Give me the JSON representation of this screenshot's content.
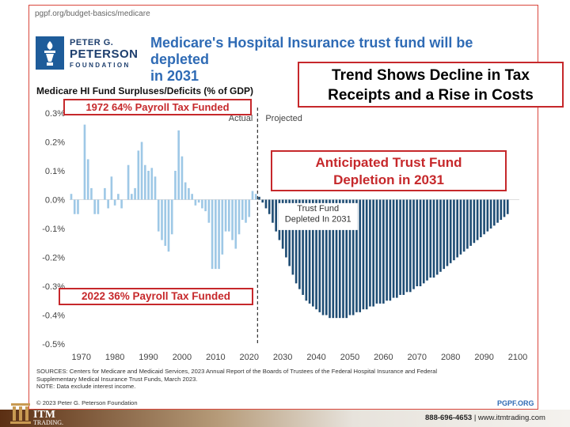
{
  "page": {
    "url": "pgpf.org/budget-basics/medicare",
    "title_line1": "Medicare's Hospital Insurance trust fund will be depleted",
    "title_line2": "in 2031",
    "logo_line1": "PETER G.",
    "logo_line2": "PETERSON",
    "logo_line3": "FOUNDATION",
    "sources_line1": "SOURCES: Centers for Medicare and Medicaid Services, 2023 Annual Report of the Boards of Trustees of the Federal Hospital Insurance and Federal",
    "sources_line2": "Supplementary Medical Insurance Trust Funds, March 2023.",
    "sources_line3": "NOTE: Data exclude interest income.",
    "copyright": "© 2023 Peter G. Peterson Foundation",
    "site": "PGPF.ORG"
  },
  "callouts": {
    "trend_line1": "Trend Shows Decline in Tax",
    "trend_line2": "Receipts and a Rise in Costs",
    "depletion_line1": "Anticipated Trust Fund",
    "depletion_line2": "Depletion in 2031",
    "label_1972": "1972 64% Payroll Tax Funded",
    "label_2022": "2022 36% Payroll Tax Funded"
  },
  "footer": {
    "brand_line1": "ITM",
    "brand_line2": "TRADING.",
    "phone": "888-696-4653",
    "separator": "|",
    "website": "www.itmtrading.com"
  },
  "colors": {
    "actual": "#9ec8e6",
    "projected": "#1f4d74",
    "accent_red": "#c6282b",
    "title_blue": "#2f6bb5"
  },
  "chart_data": {
    "type": "bar",
    "title": "Medicare HI Fund Surpluses/Deficits (% of GDP)",
    "xlabel": "",
    "ylabel": "",
    "ylim": [
      -0.5,
      0.3
    ],
    "xlim": [
      1967,
      2100
    ],
    "grid": false,
    "y_ticks": [
      0.3,
      0.2,
      0.1,
      0.0,
      -0.1,
      -0.2,
      -0.3,
      -0.4,
      -0.5
    ],
    "y_tick_labels": [
      "0.3%",
      "0.2%",
      "0.1%",
      "0.0%",
      "-0.1%",
      "-0.2%",
      "-0.3%",
      "-0.4%",
      "-0.5%"
    ],
    "x_ticks": [
      1970,
      1980,
      1990,
      2000,
      2010,
      2020,
      2030,
      2040,
      2050,
      2060,
      2070,
      2080,
      2090,
      2100
    ],
    "x_tick_labels": [
      "1970",
      "1980",
      "1990",
      "2000",
      "2010",
      "2020",
      "2030",
      "2040",
      "2050",
      "2060",
      "2070",
      "2080",
      "2090",
      "2100"
    ],
    "divider_year": 2022.5,
    "label_actual": "Actual",
    "label_projected": "Projected",
    "annotation_line1": "Trust Fund",
    "annotation_line2": "Depleted In 2031",
    "series": [
      {
        "name": "Actual",
        "x": [
          1967,
          1968,
          1969,
          1970,
          1971,
          1972,
          1973,
          1974,
          1975,
          1976,
          1977,
          1978,
          1979,
          1980,
          1981,
          1982,
          1983,
          1984,
          1985,
          1986,
          1987,
          1988,
          1989,
          1990,
          1991,
          1992,
          1993,
          1994,
          1995,
          1996,
          1997,
          1998,
          1999,
          2000,
          2001,
          2002,
          2003,
          2004,
          2005,
          2006,
          2007,
          2008,
          2009,
          2010,
          2011,
          2012,
          2013,
          2014,
          2015,
          2016,
          2017,
          2018,
          2019,
          2020,
          2021,
          2022
        ],
        "values": [
          0.02,
          -0.05,
          -0.05,
          0.0,
          0.26,
          0.14,
          0.04,
          -0.05,
          -0.05,
          0.0,
          0.04,
          -0.03,
          0.08,
          -0.02,
          0.02,
          -0.03,
          0.0,
          0.12,
          0.02,
          0.04,
          0.17,
          0.2,
          0.12,
          0.1,
          0.11,
          0.08,
          -0.11,
          -0.14,
          -0.16,
          -0.18,
          -0.12,
          0.1,
          0.24,
          0.15,
          0.06,
          0.04,
          0.02,
          -0.02,
          -0.01,
          -0.03,
          -0.04,
          -0.08,
          -0.24,
          -0.24,
          -0.24,
          -0.19,
          -0.11,
          -0.11,
          -0.14,
          -0.17,
          -0.12,
          -0.07,
          -0.08,
          -0.06,
          0.03,
          0.02
        ]
      },
      {
        "name": "Projected",
        "x": [
          2023,
          2024,
          2025,
          2026,
          2027,
          2028,
          2029,
          2030,
          2031,
          2032,
          2033,
          2034,
          2035,
          2036,
          2037,
          2038,
          2039,
          2040,
          2041,
          2042,
          2043,
          2044,
          2045,
          2046,
          2047,
          2048,
          2049,
          2050,
          2051,
          2052,
          2053,
          2054,
          2055,
          2056,
          2057,
          2058,
          2059,
          2060,
          2061,
          2062,
          2063,
          2064,
          2065,
          2066,
          2067,
          2068,
          2069,
          2070,
          2071,
          2072,
          2073,
          2074,
          2075,
          2076,
          2077,
          2078,
          2079,
          2080,
          2081,
          2082,
          2083,
          2084,
          2085,
          2086,
          2087,
          2088,
          2089,
          2090,
          2091,
          2092,
          2093,
          2094,
          2095,
          2096,
          2097
        ],
        "values": [
          0.01,
          -0.01,
          -0.03,
          -0.05,
          -0.08,
          -0.11,
          -0.14,
          -0.17,
          -0.2,
          -0.23,
          -0.26,
          -0.29,
          -0.31,
          -0.33,
          -0.35,
          -0.36,
          -0.37,
          -0.38,
          -0.39,
          -0.4,
          -0.4,
          -0.41,
          -0.41,
          -0.41,
          -0.41,
          -0.41,
          -0.41,
          -0.4,
          -0.4,
          -0.39,
          -0.39,
          -0.38,
          -0.38,
          -0.37,
          -0.37,
          -0.36,
          -0.36,
          -0.36,
          -0.35,
          -0.35,
          -0.34,
          -0.34,
          -0.33,
          -0.33,
          -0.32,
          -0.32,
          -0.31,
          -0.3,
          -0.3,
          -0.29,
          -0.28,
          -0.27,
          -0.27,
          -0.26,
          -0.25,
          -0.24,
          -0.23,
          -0.22,
          -0.21,
          -0.2,
          -0.19,
          -0.18,
          -0.17,
          -0.16,
          -0.15,
          -0.14,
          -0.13,
          -0.12,
          -0.11,
          -0.1,
          -0.09,
          -0.08,
          -0.07,
          -0.06,
          -0.05
        ]
      }
    ]
  }
}
